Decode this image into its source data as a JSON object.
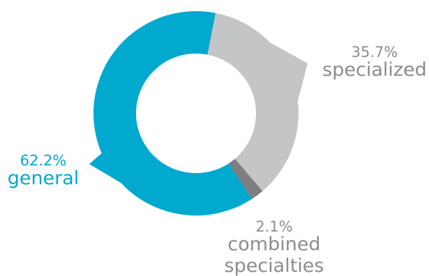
{
  "chart_data": {
    "type": "pie",
    "style": "donut",
    "categories": [
      "specialized",
      "combined specialties",
      "general"
    ],
    "values": [
      35.7,
      2.1,
      62.2
    ],
    "labels": [
      {
        "percent": "35.7%",
        "name": [
          "specialized"
        ]
      },
      {
        "percent": "2.1%",
        "name": [
          "combined",
          "specialties"
        ]
      },
      {
        "percent": "62.2%",
        "name": [
          "general"
        ]
      }
    ],
    "colors": [
      "#c4c5c7",
      "#7c7e80",
      "#00a9cd"
    ],
    "label_colors": [
      "#8a8c8e",
      "#8a8c8e",
      "#00a9cd"
    ],
    "legend": "none"
  }
}
